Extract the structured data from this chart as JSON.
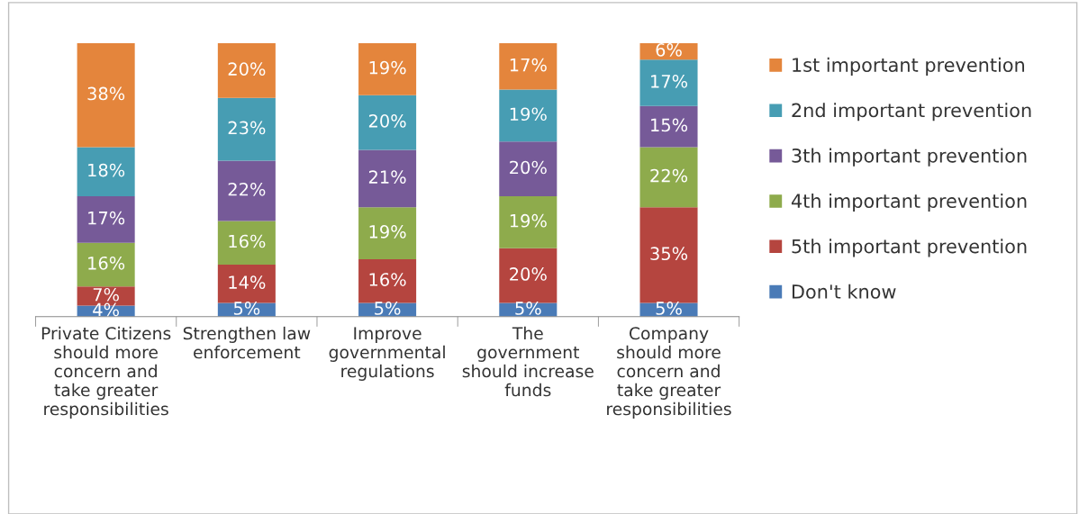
{
  "chart_data": {
    "type": "bar",
    "stacked": true,
    "categories": [
      "Private Citizens\nshould more\nconcern and\ntake greater\nresponsibilities",
      "Strengthen law\nenforcement",
      "Improve\ngovernmental\nregulations",
      "The\ngovernment\nshould increase\nfunds",
      "Company\nshould more\nconcern and\ntake greater\nresponsibilities"
    ],
    "ylim": [
      0,
      100
    ],
    "tick_labels": "x",
    "legend": "right",
    "grid": false,
    "series": [
      {
        "name": "Don't know",
        "color": "#4a7bb7",
        "values": [
          4,
          5,
          5,
          5,
          5
        ],
        "value_labels": [
          "4%",
          "5%",
          "5%",
          "5%",
          "5%"
        ]
      },
      {
        "name": "5th important prevention",
        "color": "#b5453f",
        "values": [
          7,
          14,
          16,
          20,
          35
        ],
        "value_labels": [
          "7%",
          "14%",
          "16%",
          "20%",
          "35%"
        ]
      },
      {
        "name": "4th important prevention",
        "color": "#8eab4c",
        "values": [
          16,
          16,
          19,
          19,
          22
        ],
        "value_labels": [
          "16%",
          "16%",
          "19%",
          "19%",
          "22%"
        ]
      },
      {
        "name": "3th important prevention",
        "color": "#765a98",
        "values": [
          17,
          22,
          21,
          20,
          15
        ],
        "value_labels": [
          "17%",
          "22%",
          "21%",
          "20%",
          "15%"
        ]
      },
      {
        "name": "2nd important prevention",
        "color": "#479db3",
        "values": [
          18,
          23,
          20,
          19,
          17
        ],
        "value_labels": [
          "18%",
          "23%",
          "20%",
          "19%",
          "17%"
        ]
      },
      {
        "name": "1st important prevention",
        "color": "#e4853c",
        "values": [
          38,
          20,
          19,
          17,
          6
        ],
        "value_labels": [
          "38%",
          "20%",
          "19%",
          "17%",
          "6%"
        ]
      }
    ]
  }
}
